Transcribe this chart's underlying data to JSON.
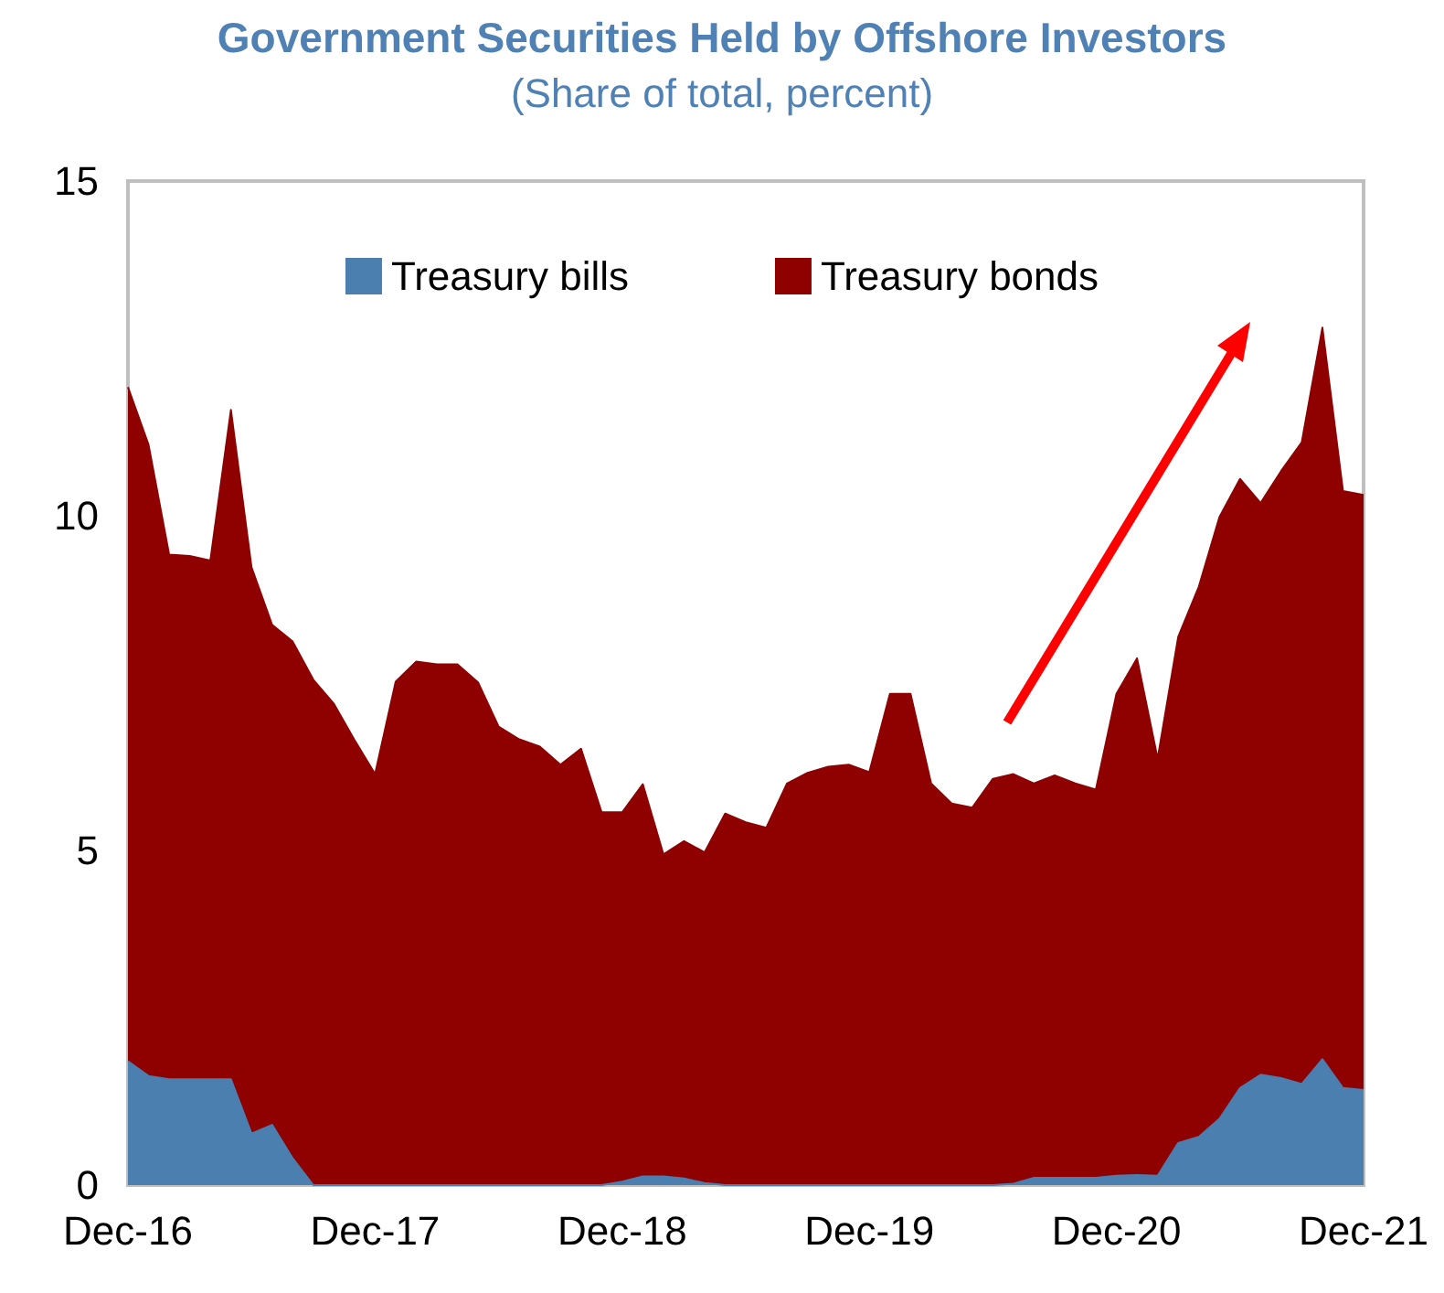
{
  "chart_data": {
    "type": "area",
    "title": "Government Securities Held by Offshore Investors",
    "subtitle": "(Share of total, percent)",
    "categories": [
      "Dec-16",
      null,
      null,
      null,
      null,
      null,
      null,
      null,
      null,
      null,
      null,
      null,
      "Dec-17",
      null,
      null,
      null,
      null,
      null,
      null,
      null,
      null,
      null,
      null,
      null,
      "Dec-18",
      null,
      null,
      null,
      null,
      null,
      null,
      null,
      null,
      null,
      null,
      null,
      "Dec-19",
      null,
      null,
      null,
      null,
      null,
      null,
      null,
      null,
      null,
      null,
      null,
      "Dec-20",
      null,
      null,
      null,
      null,
      null,
      null,
      null,
      null,
      null,
      null,
      null,
      "Dec-21"
    ],
    "stacked": true,
    "ylim": [
      0,
      15
    ],
    "yticks": [
      0,
      5,
      10,
      15
    ],
    "legend": "top",
    "series": [
      {
        "name": "Treasury bills",
        "color": "#4a7fb0",
        "values": [
          1.85,
          1.63,
          1.58,
          1.58,
          1.58,
          1.58,
          0.77,
          0.9,
          0.4,
          0,
          0,
          0,
          0,
          0,
          0,
          0,
          0,
          0,
          0,
          0,
          0,
          0,
          0,
          0,
          0.05,
          0.13,
          0.13,
          0.1,
          0.03,
          0,
          0,
          0,
          0,
          0,
          0,
          0,
          0,
          0,
          0,
          0,
          0,
          0,
          0,
          0.02,
          0.11,
          0.11,
          0.11,
          0.11,
          0.14,
          0.15,
          0.14,
          0.63,
          0.72,
          0.99,
          1.45,
          1.65,
          1.6,
          1.51,
          1.88,
          1.45,
          1.42
        ]
      },
      {
        "name": "Treasury bonds",
        "color": "#8f0000",
        "values": [
          10.07,
          9.43,
          7.84,
          7.82,
          7.75,
          10.0,
          8.46,
          7.47,
          7.72,
          7.55,
          7.19,
          6.65,
          6.14,
          7.52,
          7.82,
          7.78,
          7.78,
          7.51,
          6.85,
          6.66,
          6.55,
          6.28,
          6.52,
          5.57,
          5.52,
          5.86,
          4.81,
          5.04,
          4.94,
          5.55,
          5.42,
          5.34,
          6.0,
          6.16,
          6.25,
          6.28,
          6.17,
          7.34,
          7.34,
          6.0,
          5.7,
          5.64,
          6.07,
          6.12,
          5.89,
          6.01,
          5.89,
          5.8,
          7.2,
          7.72,
          6.23,
          7.56,
          8.22,
          8.99,
          9.1,
          8.54,
          9.07,
          9.59,
          10.93,
          8.92,
          8.89
        ]
      }
    ]
  }
}
